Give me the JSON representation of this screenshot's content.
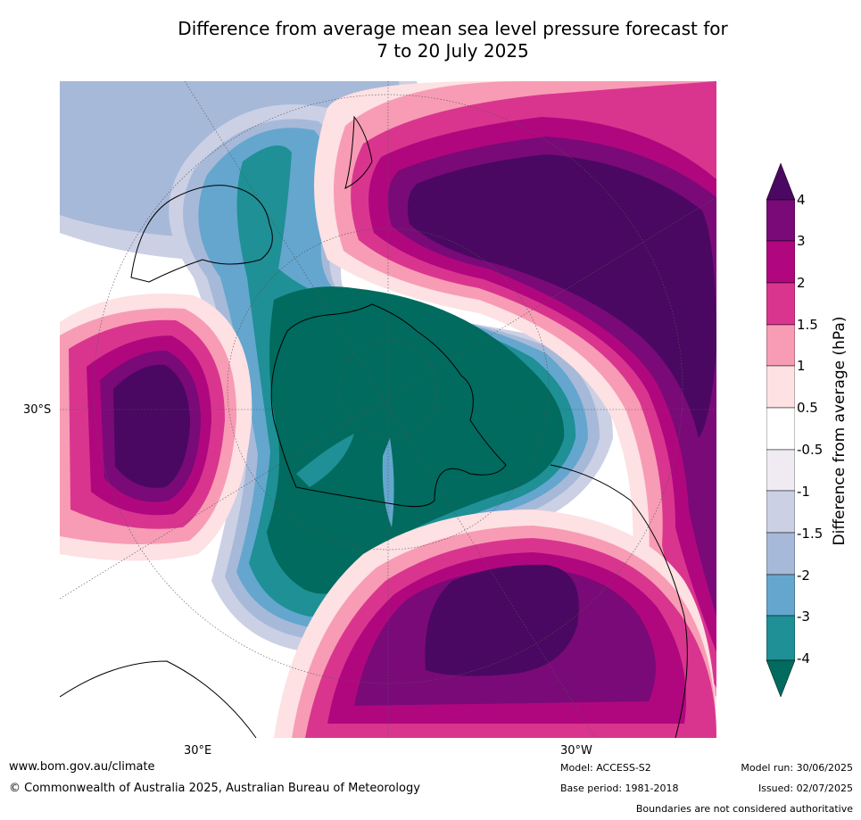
{
  "title_line1": "Difference from average mean sea level pressure forecast for",
  "title_line2": "7 to 20 July 2025",
  "map_labels": {
    "lat_30s": "30°S",
    "lon_30e": "30°E",
    "lon_30w": "30°W"
  },
  "colorbar": {
    "title": "Difference from average (hPa)",
    "ticks": [
      "4",
      "3",
      "2",
      "1.5",
      "1",
      "0.5",
      "-0.5",
      "-1",
      "-1.5",
      "-2",
      "-3",
      "-4"
    ],
    "colors": {
      "gt4": "#4a0862",
      "3_4": "#7a0a78",
      "2_3": "#b0077f",
      "1.5_2": "#d9358f",
      "1_1.5": "#f79cb4",
      "0.5_1": "#fde1e3",
      "neutral": "#ffffff",
      "m1_m0.5": "#f0ebf3",
      "m1.5_m1": "#ccd0e4",
      "m2_m1.5": "#a7b9d8",
      "m3_m2": "#64a6ce",
      "m4_m3": "#1e9096",
      "lt_m4": "#006b5e"
    }
  },
  "footer": {
    "website": "www.bom.gov.au/climate",
    "copyright": "© Commonwealth of Australia 2025, Australian Bureau of Meteorology",
    "model": "Model: ACCESS-S2",
    "base_period": "Base period: 1981-2018",
    "model_run": "Model run: 30/06/2025",
    "issued": "Issued: 02/07/2025",
    "disclaimer": "Boundaries are not considered authoritative"
  }
}
